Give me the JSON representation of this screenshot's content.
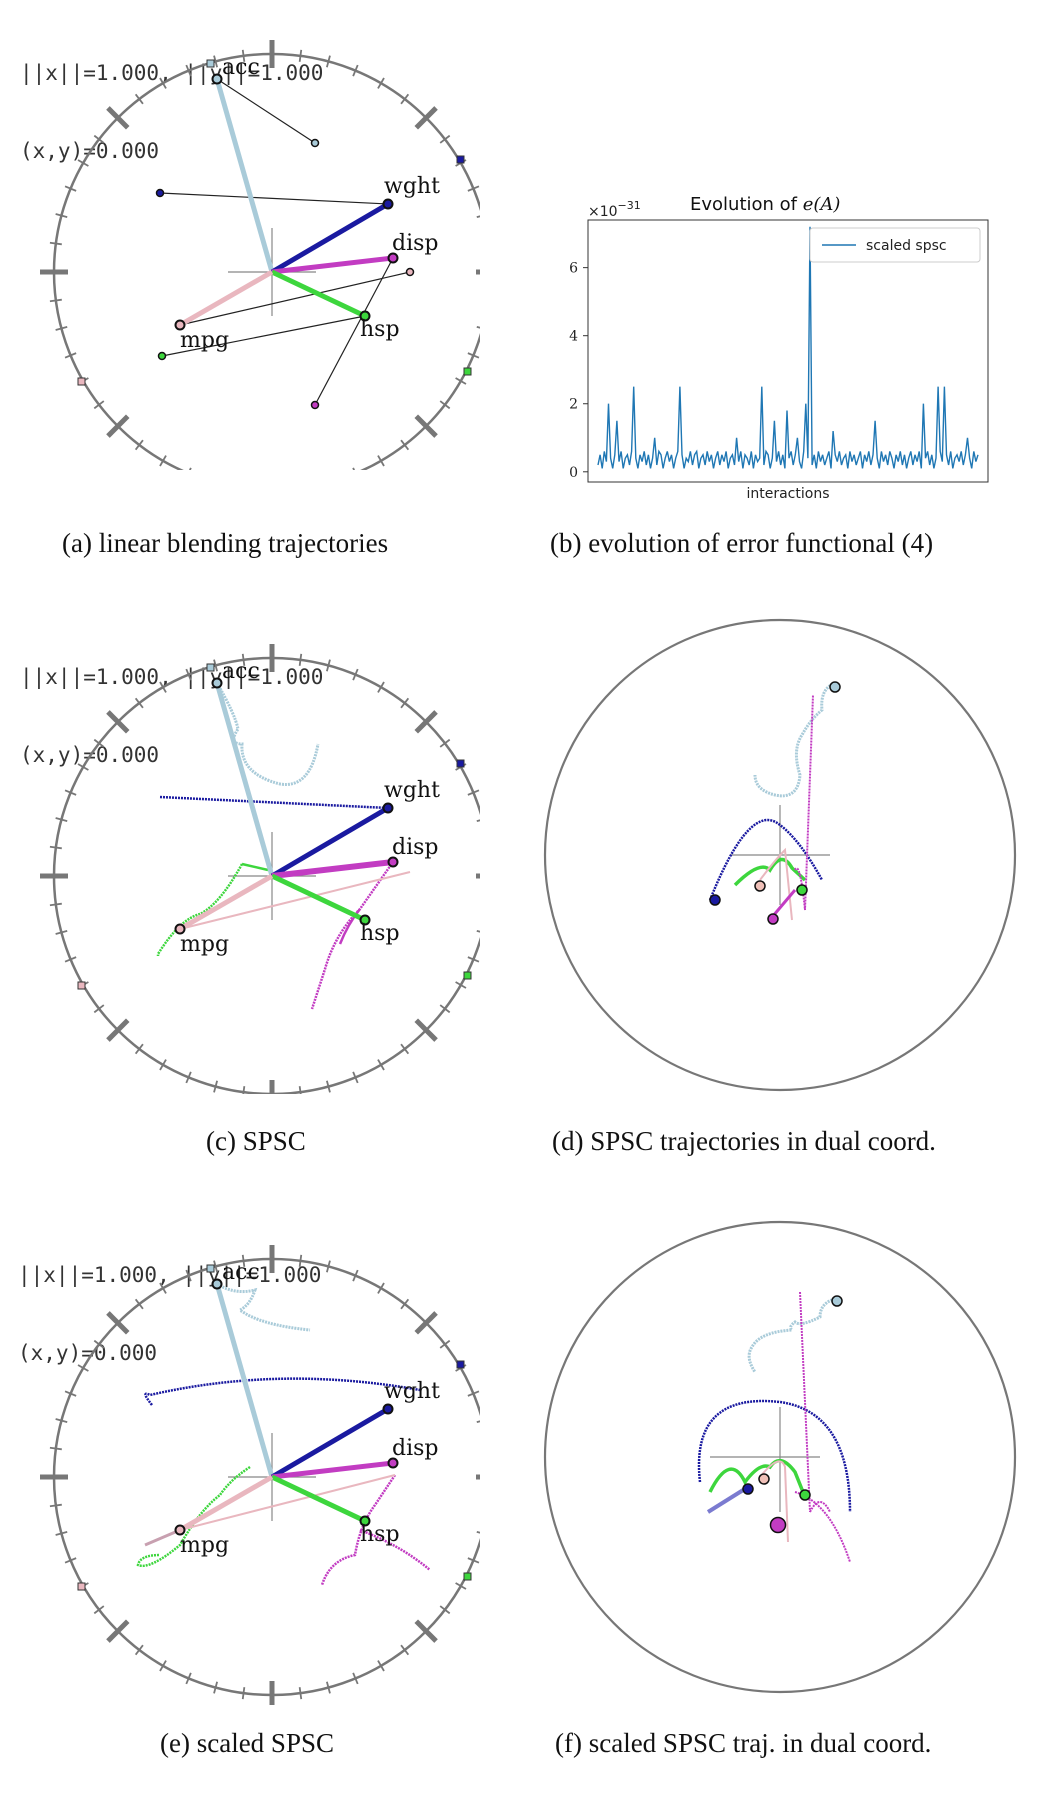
{
  "overlay_text": {
    "norm_line": "||x||=1.000, ||y||=1.000",
    "inner_line": "(x,y)=0.000"
  },
  "variables": [
    "acc",
    "wght",
    "disp",
    "hsp",
    "mpg"
  ],
  "variable_colors": {
    "acc": "#a9cbd9",
    "wght": "#1a1aa0",
    "disp": "#c23cc2",
    "hsp": "#3dd63d",
    "mpg": "#e9b7bf"
  },
  "captions": {
    "a": "(a) linear blending trajectories",
    "b": "(b) evolution of error functional (4)",
    "c": "(c) SPSC",
    "d": "(d) SPSC trajectories in dual coord.",
    "e": "(e) scaled SPSC",
    "f": "(f) scaled SPSC traj. in dual coord."
  },
  "chart_data": {
    "type": "line",
    "title": "Evolution of e(A)",
    "title_prefix": "Evolution of ",
    "title_math": "e(A)",
    "xlabel": "interactions",
    "ylabel": "",
    "y_multiplier": "×10",
    "y_exponent": "−31",
    "ylim": [
      -0.3,
      7.4
    ],
    "yticks": [
      0,
      2,
      4,
      6
    ],
    "grid": false,
    "legend_position": "top-right",
    "series": [
      {
        "name": "scaled spsc",
        "color": "#1f77b4",
        "values": [
          0.2,
          0.5,
          0.1,
          0.6,
          0.3,
          2.0,
          0.4,
          0.1,
          0.5,
          1.5,
          0.3,
          0.6,
          0.1,
          0.4,
          0.5,
          0.2,
          0.6,
          2.5,
          0.4,
          0.1,
          0.5,
          0.3,
          0.6,
          0.2,
          0.5,
          0.1,
          0.4,
          1.0,
          0.2,
          0.6,
          0.5,
          0.1,
          0.4,
          0.6,
          0.3,
          0.5,
          0.1,
          0.4,
          0.6,
          2.5,
          0.5,
          0.1,
          0.4,
          0.3,
          0.6,
          0.2,
          0.5,
          0.6,
          0.1,
          0.4,
          0.5,
          0.2,
          0.6,
          0.3,
          0.5,
          0.1,
          0.4,
          0.6,
          0.2,
          0.5,
          0.3,
          0.6,
          0.1,
          0.4,
          0.5,
          0.2,
          1.0,
          0.3,
          0.6,
          0.1,
          0.5,
          0.4,
          0.2,
          0.6,
          0.1,
          0.5,
          0.3,
          0.4,
          2.5,
          0.2,
          0.6,
          0.5,
          0.1,
          0.4,
          1.5,
          0.3,
          0.6,
          0.2,
          0.5,
          0.1,
          1.8,
          0.4,
          0.6,
          0.2,
          0.5,
          1.0,
          0.3,
          0.1,
          0.6,
          2.0,
          0.4,
          7.2,
          0.2,
          0.5,
          0.1,
          0.6,
          0.3,
          0.5,
          0.2,
          0.4,
          0.6,
          0.1,
          1.2,
          0.5,
          0.3,
          0.6,
          0.2,
          0.4,
          0.5,
          0.1,
          0.6,
          0.3,
          0.5,
          0.2,
          0.4,
          0.6,
          0.1,
          0.5,
          0.3,
          0.6,
          0.2,
          0.5,
          1.5,
          0.4,
          0.1,
          0.6,
          0.3,
          0.5,
          0.2,
          0.6,
          0.4,
          0.1,
          0.5,
          0.3,
          0.6,
          0.2,
          0.5,
          0.1,
          0.4,
          0.6,
          0.2,
          0.5,
          0.3,
          0.6,
          0.1,
          2.0,
          0.4,
          0.6,
          0.2,
          0.5,
          0.1,
          0.4,
          2.5,
          0.6,
          0.3,
          2.5,
          0.5,
          0.2,
          0.6,
          0.1,
          0.4,
          0.5,
          0.3,
          0.6,
          0.2,
          0.5,
          1.0,
          0.4,
          0.1,
          0.6,
          0.3,
          0.5
        ]
      }
    ]
  }
}
